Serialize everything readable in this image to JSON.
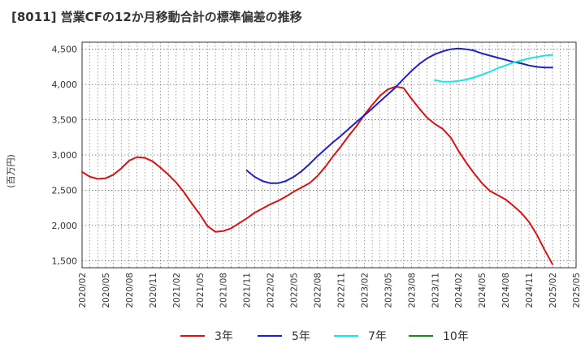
{
  "chart_data": {
    "type": "line",
    "title": "[8011]  営業CFの12か月移動合計の標準偏差の推移",
    "ylabel": "(百万円)",
    "xlabel": "",
    "ylim": [
      1400,
      4600
    ],
    "yticks": [
      1500,
      2000,
      2500,
      3000,
      3500,
      4000,
      4500
    ],
    "ytick_labels": [
      "1,500",
      "2,000",
      "2,500",
      "3,000",
      "3,500",
      "4,000",
      "4,500"
    ],
    "xtick_labels": [
      "2020/02",
      "2020/05",
      "2020/08",
      "2020/11",
      "2021/02",
      "2021/05",
      "2021/08",
      "2021/11",
      "2022/02",
      "2022/05",
      "2022/08",
      "2022/11",
      "2023/02",
      "2023/05",
      "2023/08",
      "2023/11",
      "2024/02",
      "2024/05",
      "2024/08",
      "2024/11",
      "2025/02",
      "2025/05"
    ],
    "grid": true,
    "legend_position": "bottom",
    "series": [
      {
        "name": "3年",
        "color": "#dd1111",
        "x": [
          "2020/02",
          "2020/03",
          "2020/04",
          "2020/05",
          "2020/06",
          "2020/07",
          "2020/08",
          "2020/09",
          "2020/10",
          "2020/11",
          "2020/12",
          "2021/01",
          "2021/02",
          "2021/03",
          "2021/04",
          "2021/05",
          "2021/06",
          "2021/07",
          "2021/08",
          "2021/09",
          "2021/10",
          "2021/11",
          "2021/12",
          "2022/01",
          "2022/02",
          "2022/03",
          "2022/04",
          "2022/05",
          "2022/06",
          "2022/07",
          "2022/08",
          "2022/09",
          "2022/10",
          "2022/11",
          "2022/12",
          "2023/01",
          "2023/02",
          "2023/03",
          "2023/04",
          "2023/05",
          "2023/06",
          "2023/07",
          "2023/08",
          "2023/09",
          "2023/10",
          "2023/11",
          "2023/12",
          "2024/01",
          "2024/02",
          "2024/03",
          "2024/04",
          "2024/05",
          "2024/06",
          "2024/07",
          "2024/08",
          "2024/09",
          "2024/10",
          "2024/11",
          "2024/12",
          "2025/01",
          "2025/02"
        ],
        "values": [
          2760,
          2690,
          2660,
          2670,
          2720,
          2810,
          2920,
          2970,
          2960,
          2910,
          2820,
          2720,
          2610,
          2470,
          2310,
          2160,
          1990,
          1910,
          1920,
          1960,
          2030,
          2100,
          2180,
          2240,
          2300,
          2350,
          2410,
          2480,
          2540,
          2600,
          2700,
          2830,
          2980,
          3120,
          3270,
          3410,
          3570,
          3710,
          3840,
          3930,
          3970,
          3950,
          3800,
          3660,
          3530,
          3440,
          3370,
          3250,
          3060,
          2890,
          2740,
          2600,
          2490,
          2430,
          2370,
          2280,
          2180,
          2050,
          1870,
          1650,
          1450
        ]
      },
      {
        "name": "5年",
        "color": "#1f1fcc",
        "x": [
          "2021/11",
          "2021/12",
          "2022/01",
          "2022/02",
          "2022/03",
          "2022/04",
          "2022/05",
          "2022/06",
          "2022/07",
          "2022/08",
          "2022/09",
          "2022/10",
          "2022/11",
          "2022/12",
          "2023/01",
          "2023/02",
          "2023/03",
          "2023/04",
          "2023/05",
          "2023/06",
          "2023/07",
          "2023/08",
          "2023/09",
          "2023/10",
          "2023/11",
          "2023/12",
          "2024/01",
          "2024/02",
          "2024/03",
          "2024/04",
          "2024/05",
          "2024/06",
          "2024/07",
          "2024/08",
          "2024/09",
          "2024/10",
          "2024/11",
          "2024/12",
          "2025/01",
          "2025/02"
        ],
        "values": [
          2780,
          2690,
          2630,
          2600,
          2600,
          2630,
          2690,
          2770,
          2870,
          2980,
          3080,
          3180,
          3270,
          3370,
          3470,
          3560,
          3660,
          3760,
          3860,
          3960,
          4080,
          4190,
          4290,
          4370,
          4430,
          4470,
          4500,
          4510,
          4500,
          4480,
          4440,
          4410,
          4380,
          4350,
          4320,
          4300,
          4270,
          4250,
          4240,
          4240
        ]
      },
      {
        "name": "7年",
        "color": "#11e8ee",
        "x": [
          "2023/11",
          "2023/12",
          "2024/01",
          "2024/02",
          "2024/03",
          "2024/04",
          "2024/05",
          "2024/06",
          "2024/07",
          "2024/08",
          "2024/09",
          "2024/10",
          "2024/11",
          "2024/12",
          "2025/01",
          "2025/02"
        ],
        "values": [
          4060,
          4040,
          4040,
          4050,
          4070,
          4100,
          4140,
          4180,
          4230,
          4270,
          4310,
          4340,
          4370,
          4390,
          4410,
          4420
        ]
      },
      {
        "name": "10年",
        "color": "#1a8a1a",
        "x": [],
        "values": []
      }
    ]
  }
}
